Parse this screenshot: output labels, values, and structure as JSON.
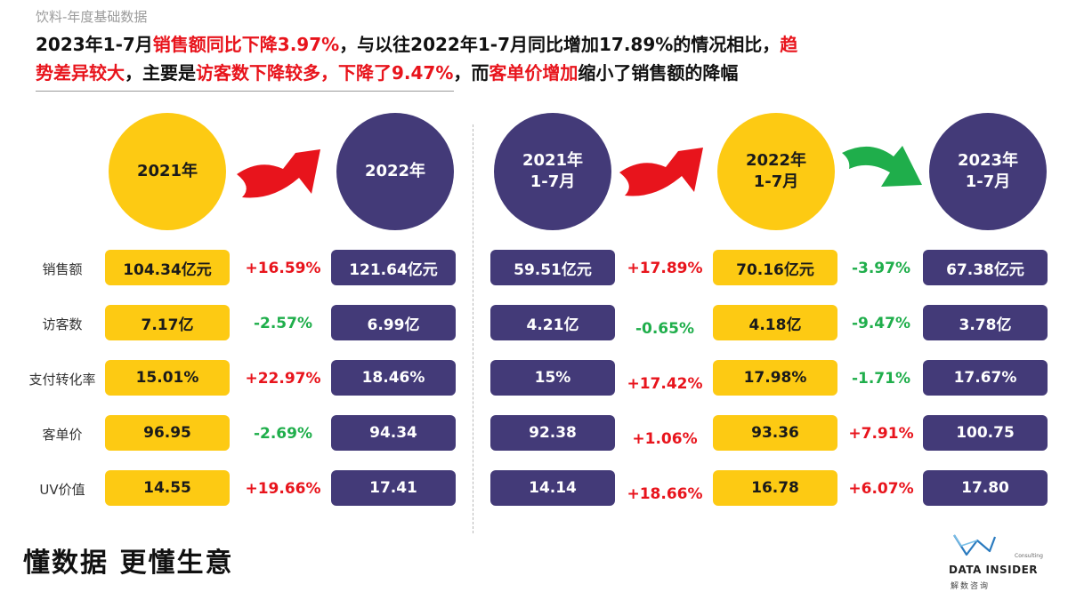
{
  "slide_tag": "饮料-年度基础数据",
  "headline": {
    "line1_a": "2023年1-7月",
    "line1_b": "销售额同比下降3.97%",
    "line1_c": "，与以往2022年1-7月同比增加17.89%的情况相比，",
    "line1_d": "趋",
    "line2_a": "势差异较大",
    "line2_b": "，主要是",
    "line2_c": "访客数下降较多，下降了9.47%",
    "line2_d": "，而",
    "line2_e": "客单价增加",
    "line2_f": "缩小了销售额的降幅"
  },
  "circles": [
    {
      "line1": "2021年",
      "line2": "",
      "color": "yellow"
    },
    {
      "line1": "2022年",
      "line2": "",
      "color": "purple"
    },
    {
      "line1": "2021年",
      "line2": "1-7月",
      "color": "purple"
    },
    {
      "line1": "2022年",
      "line2": "1-7月",
      "color": "yellow"
    },
    {
      "line1": "2023年",
      "line2": "1-7月",
      "color": "purple"
    }
  ],
  "arrows": [
    {
      "color": "#e8141c",
      "icon": "red-curved-arrow-icon"
    },
    {
      "color": "#e8141c",
      "icon": "red-curved-arrow-icon"
    },
    {
      "color": "#1fae4b",
      "icon": "green-curved-arrow-icon"
    }
  ],
  "metrics": [
    "销售额",
    "访客数",
    "支付转化率",
    "客单价",
    "UV价值"
  ],
  "rows": [
    {
      "c1": "104.34亿元",
      "p1": "+16.59%",
      "c2": "121.64亿元",
      "c3": "59.51亿元",
      "p2": "+17.89%",
      "c4": "70.16亿元",
      "p3": "-3.97%",
      "c5": "67.38亿元"
    },
    {
      "c1": "7.17亿",
      "p1": "-2.57%",
      "c2": "6.99亿",
      "c3": "4.21亿",
      "p2": "-0.65%",
      "c4": "4.18亿",
      "p3": "-9.47%",
      "c5": "3.78亿"
    },
    {
      "c1": "15.01%",
      "p1": "+22.97%",
      "c2": "18.46%",
      "c3": "15%",
      "p2": "+17.42%",
      "c4": "17.98%",
      "p3": "-1.71%",
      "c5": "17.67%"
    },
    {
      "c1": "96.95",
      "p1": "-2.69%",
      "c2": "94.34",
      "c3": "92.38",
      "p2": "+1.06%",
      "c4": "93.36",
      "p3": "+7.91%",
      "c5": "100.75"
    },
    {
      "c1": "14.55",
      "p1": "+19.66%",
      "c2": "17.41",
      "c3": "14.14",
      "p2": "+18.66%",
      "c4": "16.78",
      "p3": "+6.07%",
      "c5": "17.80"
    }
  ],
  "colors": {
    "yellow": "#fdca13",
    "purple": "#433a78",
    "up": "#e8141c",
    "down": "#1fae4b"
  },
  "slogan": "懂数据 更懂生意",
  "logo": {
    "name": "DATA INSIDER",
    "sub": "解数咨询",
    "consult": "Consulting"
  }
}
